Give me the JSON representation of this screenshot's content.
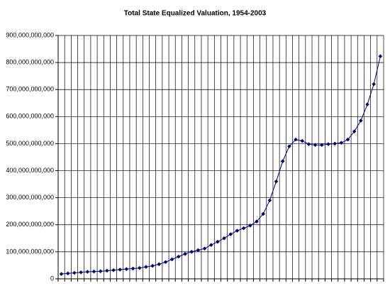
{
  "chart_data": {
    "type": "line",
    "title": "Total State Equalized Valuation, 1954-2003",
    "categories": [
      null,
      null,
      null,
      null,
      null,
      null,
      null,
      null,
      null,
      null,
      null,
      null,
      null,
      null,
      null,
      null,
      null,
      null,
      null,
      null,
      null,
      null,
      null,
      null,
      null,
      null,
      null,
      null,
      null,
      null,
      null,
      null,
      null,
      null,
      null,
      null,
      null,
      null,
      null,
      null,
      null,
      null,
      null,
      null,
      null,
      null,
      null,
      null,
      null,
      null
    ],
    "series": [
      {
        "name": null,
        "color": "#000080",
        "values": [
          18000000000,
          20000000000,
          22000000000,
          24000000000,
          26000000000,
          27000000000,
          28000000000,
          30000000000,
          32000000000,
          34000000000,
          36000000000,
          38000000000,
          40000000000,
          44000000000,
          48000000000,
          54000000000,
          62000000000,
          72000000000,
          82000000000,
          92000000000,
          100000000000,
          106000000000,
          112000000000,
          125000000000,
          137000000000,
          150000000000,
          165000000000,
          178000000000,
          187000000000,
          197000000000,
          212000000000,
          240000000000,
          290000000000,
          360000000000,
          435000000000,
          490000000000,
          515000000000,
          510000000000,
          498000000000,
          495000000000,
          495000000000,
          498000000000,
          500000000000,
          503000000000,
          515000000000,
          545000000000,
          585000000000,
          645000000000,
          720000000000,
          823000000000
        ]
      }
    ],
    "ylim": [
      0,
      900000000000
    ],
    "yticks": [
      {
        "value": 0,
        "label": "0"
      },
      {
        "value": 100000000000,
        "label": "100,000,000,000"
      },
      {
        "value": 200000000000,
        "label": "200,000,000,000"
      },
      {
        "value": 300000000000,
        "label": "300,000,000,000"
      },
      {
        "value": 400000000000,
        "label": "400,000,000,000"
      },
      {
        "value": 500000000000,
        "label": "500,000,000,000"
      },
      {
        "value": 600000000000,
        "label": "600,000,000,000"
      },
      {
        "value": 700000000000,
        "label": "700,000,000,000"
      },
      {
        "value": 800000000000,
        "label": "800,000,000,000"
      },
      {
        "value": 900000000000,
        "label": "900,000,000,000"
      }
    ],
    "grid": true
  }
}
